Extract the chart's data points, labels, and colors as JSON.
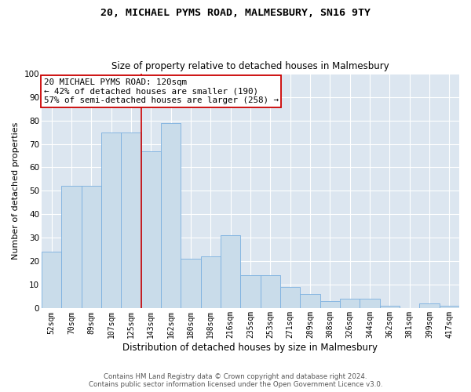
{
  "title": "20, MICHAEL PYMS ROAD, MALMESBURY, SN16 9TY",
  "subtitle": "Size of property relative to detached houses in Malmesbury",
  "xlabel": "Distribution of detached houses by size in Malmesbury",
  "ylabel": "Number of detached properties",
  "categories": [
    "52sqm",
    "70sqm",
    "89sqm",
    "107sqm",
    "125sqm",
    "143sqm",
    "162sqm",
    "180sqm",
    "198sqm",
    "216sqm",
    "235sqm",
    "253sqm",
    "271sqm",
    "289sqm",
    "308sqm",
    "326sqm",
    "344sqm",
    "362sqm",
    "381sqm",
    "399sqm",
    "417sqm"
  ],
  "values": [
    24,
    52,
    52,
    75,
    75,
    67,
    79,
    21,
    22,
    31,
    14,
    14,
    9,
    6,
    3,
    4,
    4,
    1,
    0,
    2,
    1
  ],
  "bar_color": "#c9dcea",
  "bar_edge_color": "#7aafe0",
  "bar_width": 1.0,
  "vline_x": 4.5,
  "vline_color": "#cc0000",
  "annotation_text": "20 MICHAEL PYMS ROAD: 120sqm\n← 42% of detached houses are smaller (190)\n57% of semi-detached houses are larger (258) →",
  "annotation_box_color": "#ffffff",
  "annotation_box_edge_color": "#cc0000",
  "ylim": [
    0,
    100
  ],
  "yticks": [
    0,
    10,
    20,
    30,
    40,
    50,
    60,
    70,
    80,
    90,
    100
  ],
  "background_color": "#dce6f0",
  "footer_line1": "Contains HM Land Registry data © Crown copyright and database right 2024.",
  "footer_line2": "Contains public sector information licensed under the Open Government Licence v3.0."
}
